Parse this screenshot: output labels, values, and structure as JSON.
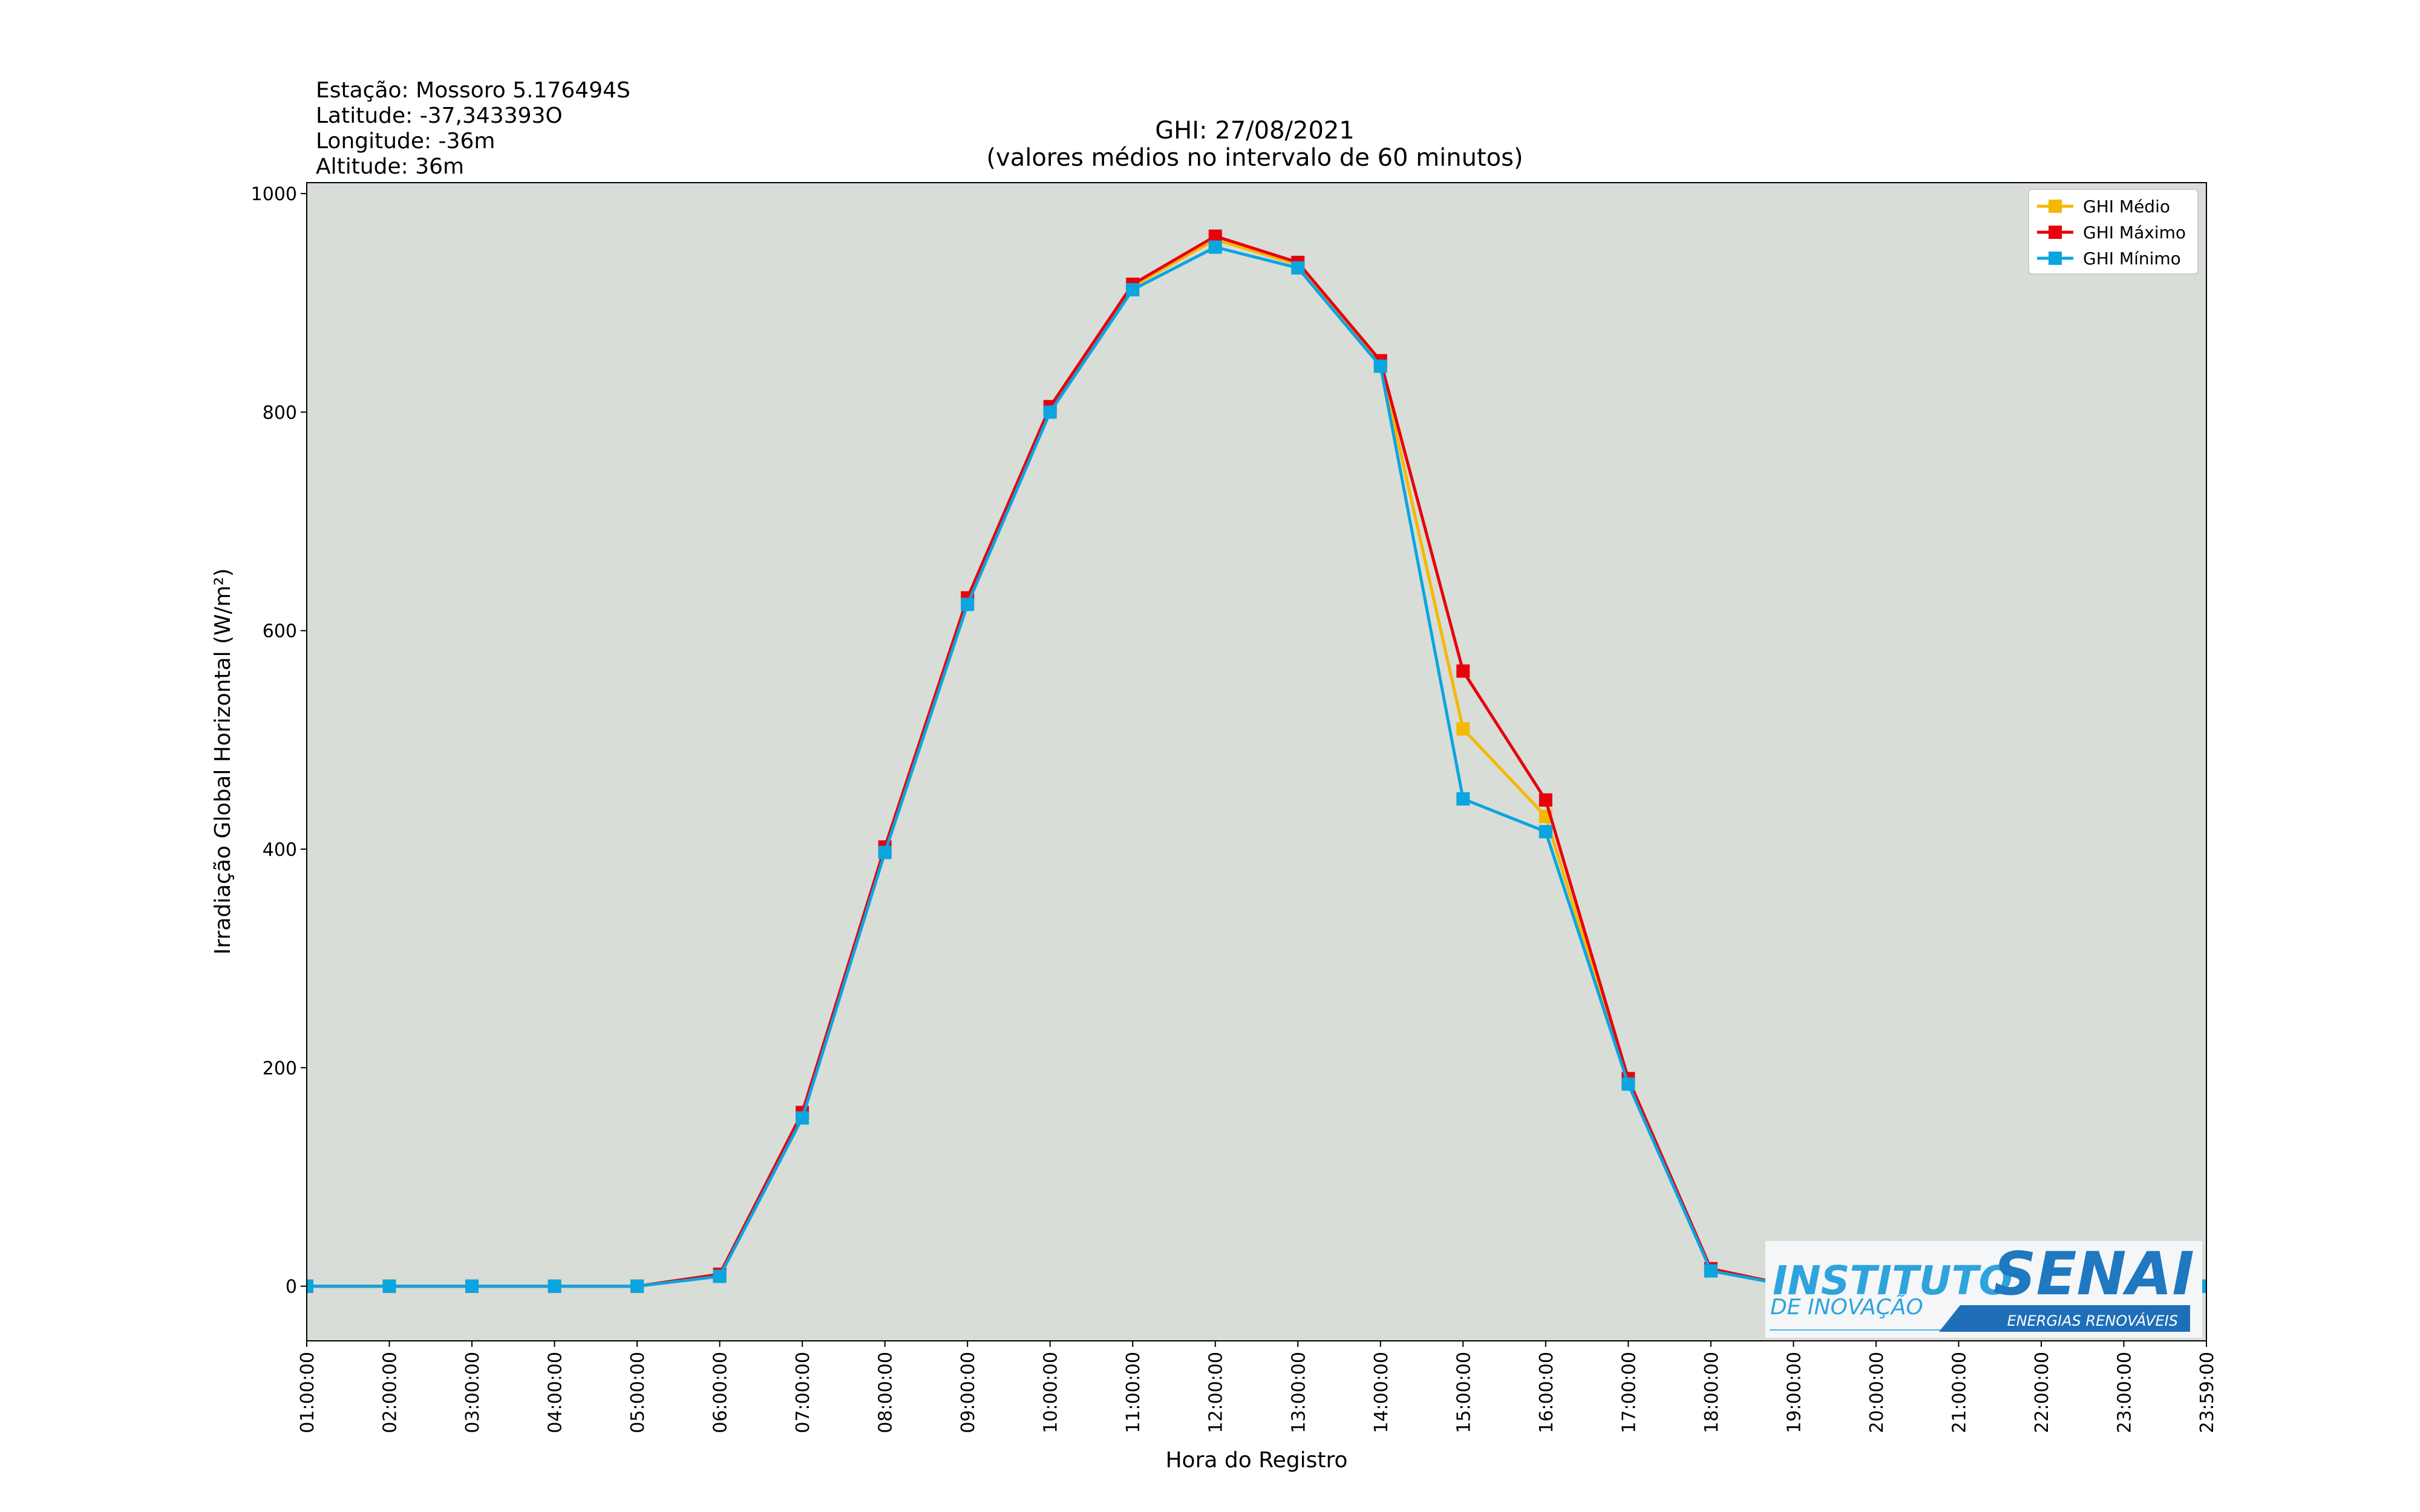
{
  "station_info": [
    "Estação: Mossoro 5.176494S",
    "Latitude: -37,343393O",
    "Longitude: -36m",
    "Altitude: 36m"
  ],
  "chart_data": {
    "type": "line",
    "title": "GHI: 27/08/2021",
    "subtitle": "(valores médios no intervalo de 60 minutos)",
    "xlabel": "Hora do Registro",
    "ylabel": "Irradiação Global Horizontal (W/m²)",
    "ylim": [
      -50,
      1010
    ],
    "yticks": [
      0,
      200,
      400,
      600,
      800,
      1000
    ],
    "grid": false,
    "legend_position": "top-right",
    "categories": [
      "01:00:00",
      "02:00:00",
      "03:00:00",
      "04:00:00",
      "05:00:00",
      "06:00:00",
      "07:00:00",
      "08:00:00",
      "09:00:00",
      "10:00:00",
      "11:00:00",
      "12:00:00",
      "13:00:00",
      "14:00:00",
      "15:00:00",
      "16:00:00",
      "17:00:00",
      "18:00:00",
      "19:00:00",
      "20:00:00",
      "21:00:00",
      "22:00:00",
      "23:00:00",
      "23:59:00"
    ],
    "series": [
      {
        "name": "GHI Médio",
        "color": "#f5b800",
        "values": [
          0,
          0,
          0,
          0,
          0,
          10,
          157,
          400,
          628,
          803,
          915,
          958,
          935,
          845,
          510,
          430,
          187,
          15,
          0,
          0,
          0,
          0,
          0,
          0
        ]
      },
      {
        "name": "GHI Máximo",
        "color": "#e8000b",
        "values": [
          0,
          0,
          0,
          0,
          0,
          11,
          159,
          402,
          630,
          805,
          917,
          961,
          937,
          847,
          563,
          445,
          190,
          16,
          0,
          0,
          0,
          0,
          0,
          0
        ]
      },
      {
        "name": "GHI Mínimo",
        "color": "#0ba5e0",
        "values": [
          0,
          0,
          0,
          0,
          0,
          9,
          154,
          397,
          624,
          800,
          912,
          951,
          932,
          842,
          446,
          416,
          185,
          14,
          0,
          0,
          0,
          0,
          0,
          0
        ]
      }
    ]
  },
  "logo": {
    "line1": "INSTITUTO",
    "line2": "SENAI",
    "line3": "DE INOVAÇÃO",
    "line4": "ENERGIAS RENOVÁVEIS"
  }
}
